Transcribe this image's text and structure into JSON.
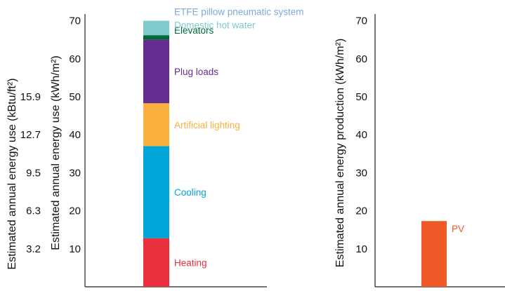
{
  "chart_data": [
    {
      "type": "bar",
      "stacked": true,
      "ylim": [
        0,
        70
      ],
      "grid": false,
      "left_axis": {
        "ylabel": "Estimated annual energy use (kBtu/ft²)",
        "ticks": [
          "3.2",
          "6.3",
          "9.5",
          "12.7",
          "15.9"
        ],
        "tick_positions_kwh": [
          10,
          20,
          30,
          40,
          50
        ]
      },
      "ylabel": "Estimated annual energy use (kWh/m²)",
      "yticks": [
        10,
        20,
        30,
        40,
        50,
        60,
        70
      ],
      "series": [
        {
          "name": "Heating",
          "value": 12.8,
          "color": "#e8303e"
        },
        {
          "name": "Cooling",
          "value": 24.2,
          "color": "#00a5d9"
        },
        {
          "name": "Artificial lighting",
          "value": 11.3,
          "color": "#fbb040"
        },
        {
          "name": "Plug loads",
          "value": 16.7,
          "color": "#662d91"
        },
        {
          "name": "Elevators",
          "value": 1.2,
          "color": "#006837"
        },
        {
          "name": "Domestic hot water",
          "value": 3.8,
          "color": "#7fcccc"
        },
        {
          "name": "ETFE pillow pneumatic system",
          "value": 0,
          "color": "#7fa9d8"
        }
      ]
    },
    {
      "type": "bar",
      "ylim": [
        0,
        70
      ],
      "grid": false,
      "ylabel": "Estimated annual energy production (kWh/m²)",
      "yticks": [
        10,
        20,
        30,
        40,
        50,
        60,
        70
      ],
      "series": [
        {
          "name": "PV",
          "value": 17.3,
          "color": "#f05a28"
        }
      ]
    }
  ]
}
